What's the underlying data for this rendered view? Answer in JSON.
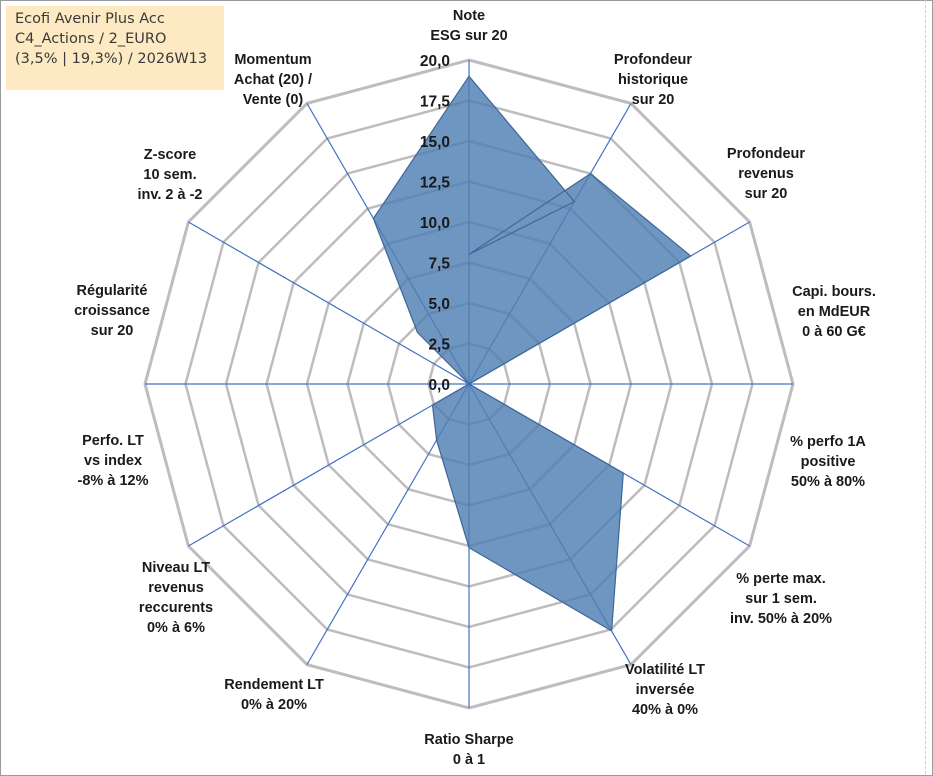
{
  "info": {
    "fund": "Ecofi Avenir Plus Acc",
    "category": "C4_Actions / 2_EURO",
    "period": "(3,5% | 19,3%) / 2026W13"
  },
  "colors": {
    "fill": "#4f7fb3",
    "stroke": "#3d6797",
    "grid": "#bdbdbd",
    "spoke": "#4472c4",
    "info_bg": "#fde9c2"
  },
  "chart_data": {
    "type": "radar",
    "title": "",
    "rmin": 0,
    "rmax": 20,
    "ticks": [
      "0,0",
      "2,5",
      "5,0",
      "7,5",
      "10,0",
      "12,5",
      "15,0",
      "17,5",
      "20,0"
    ],
    "axes": [
      {
        "label": [
          "Note",
          "ESG sur 20"
        ],
        "value": 8.0
      },
      {
        "label": [
          "Profondeur",
          "historique",
          "sur 20"
        ],
        "value": 15.0
      },
      {
        "label": [
          "Profondeur",
          "revenus",
          "sur 20"
        ],
        "value": 15.8
      },
      {
        "label": [
          "Capi. bours.",
          "en MdEUR",
          "0 à 60 G€"
        ],
        "value": 0.0
      },
      {
        "label": [
          "% perfo 1A",
          "positive",
          "50% à 80%"
        ],
        "value": 11.0
      },
      {
        "label": [
          "% perte max.",
          "sur 1 sem.",
          "inv. 50% à 20%"
        ],
        "value": 17.6
      },
      {
        "label": [
          "Volatilité LT",
          "inversée",
          "40% à 0%"
        ],
        "value": 10.1
      },
      {
        "label": [
          "Ratio Sharpe",
          "0 à 1"
        ],
        "value": 4.0
      },
      {
        "label": [
          "Rendement LT",
          "0% à 20%"
        ],
        "value": 2.6
      },
      {
        "label": [
          "Niveau LT",
          "revenus",
          "reccurents",
          "0% à 6%"
        ],
        "value": 0.0
      },
      {
        "label": [
          "Perfo. LT",
          "vs index",
          "-8% à 12%"
        ],
        "value": 0.0
      },
      {
        "label": [
          "Régularité",
          "croissance",
          "sur 20"
        ],
        "value": 4.5
      },
      {
        "label": [
          "Régularité",
          "croissance",
          "sur 20"
        ],
        "value": 11.8,
        "hidden_label": true
      },
      {
        "label": [
          "Z-score",
          "10 sem.",
          "inv. 2 à -2"
        ],
        "value": 19.0
      },
      {
        "label": [
          "Momentum",
          "Achat (20) /",
          "Vente (0)"
        ],
        "value": 13.0
      }
    ]
  }
}
